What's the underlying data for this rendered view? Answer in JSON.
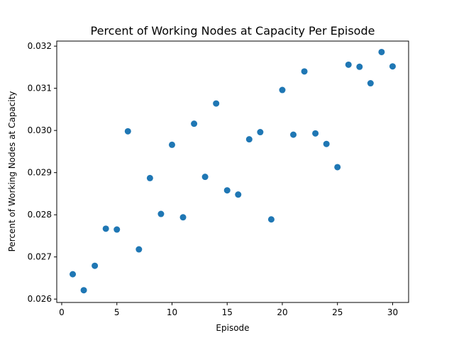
{
  "chart_data": {
    "type": "scatter",
    "title": "Percent of Working Nodes at Capacity Per Episode",
    "xlabel": "Episode",
    "ylabel": "Percent of Working Nodes at Capacity",
    "xlim": [
      -0.45,
      31.45
    ],
    "ylim": [
      0.02592,
      0.03212
    ],
    "xticks": [
      0,
      5,
      10,
      15,
      20,
      25,
      30
    ],
    "xtick_labels": [
      "0",
      "5",
      "10",
      "15",
      "20",
      "25",
      "30"
    ],
    "yticks": [
      0.026,
      0.027,
      0.028,
      0.029,
      0.03,
      0.031,
      0.032
    ],
    "ytick_labels": [
      "0.026",
      "0.027",
      "0.028",
      "0.029",
      "0.030",
      "0.031",
      "0.032"
    ],
    "grid": false,
    "marker_color": "#1f77b4",
    "series": [
      {
        "x": [
          1,
          2,
          3,
          4,
          5,
          6,
          7,
          8,
          9,
          10,
          11,
          12,
          13,
          14,
          15,
          16,
          17,
          18,
          19,
          20,
          21,
          22,
          23,
          24,
          25,
          26,
          27,
          28,
          29,
          30
        ],
        "y": [
          0.02659,
          0.02621,
          0.02679,
          0.02767,
          0.02765,
          0.02998,
          0.02718,
          0.02887,
          0.02802,
          0.02966,
          0.02794,
          0.03016,
          0.0289,
          0.03064,
          0.02858,
          0.02848,
          0.02979,
          0.02996,
          0.02789,
          0.03096,
          0.0299,
          0.0314,
          0.02993,
          0.02968,
          0.02913,
          0.03156,
          0.03151,
          0.03112,
          0.03186,
          0.03152
        ]
      }
    ]
  }
}
